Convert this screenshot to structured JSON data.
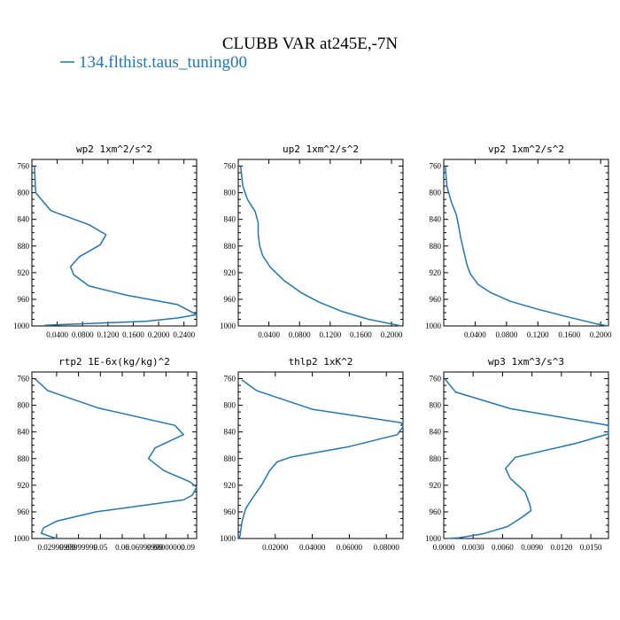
{
  "figure": {
    "title": "CLUBB VAR at245E,-7N",
    "legend_label": "134.flthist.taus_tuning00",
    "colors": {
      "series": "#1f77b4",
      "axes": "#000000",
      "background": "#ffffff"
    }
  },
  "chart_data": [
    {
      "type": "line",
      "title": "wp2   1xm^2/s^2",
      "xlim": [
        0,
        0.26
      ],
      "ylim": [
        1000,
        750
      ],
      "xticks": [
        "0.0400",
        "0.0800",
        "0.1200",
        "0.1600",
        "0.2000",
        "0.2400"
      ],
      "xtick_values": [
        0.04,
        0.08,
        0.12,
        0.16,
        0.2,
        0.24
      ],
      "yticks": [
        760,
        800,
        840,
        880,
        920,
        960,
        1000
      ],
      "series": [
        {
          "name": "134.flthist.taus_tuning00",
          "points": [
            [
              0.004,
              760
            ],
            [
              0.006,
              800
            ],
            [
              0.03,
              827
            ],
            [
              0.09,
              848
            ],
            [
              0.117,
              863
            ],
            [
              0.108,
              878
            ],
            [
              0.075,
              896
            ],
            [
              0.061,
              911
            ],
            [
              0.066,
              923
            ],
            [
              0.09,
              940
            ],
            [
              0.15,
              954
            ],
            [
              0.23,
              968
            ],
            [
              0.26,
              983
            ],
            [
              0.23,
              988
            ],
            [
              0.18,
              993
            ],
            [
              0.1,
              996
            ],
            [
              0.02,
              999
            ]
          ]
        }
      ]
    },
    {
      "type": "line",
      "title": "up2   1xm^2/s^2",
      "xlim": [
        0,
        0.215
      ],
      "ylim": [
        1000,
        750
      ],
      "xticks": [
        "0.0400",
        "0.0800",
        "0.1200",
        "0.1600",
        "0.2000"
      ],
      "xtick_values": [
        0.04,
        0.08,
        0.12,
        0.16,
        0.2
      ],
      "yticks": [
        760,
        800,
        840,
        880,
        920,
        960,
        1000
      ],
      "series": [
        {
          "name": "134.flthist.taus_tuning00",
          "points": [
            [
              0.003,
              760
            ],
            [
              0.006,
              790
            ],
            [
              0.012,
              810
            ],
            [
              0.022,
              828
            ],
            [
              0.026,
              845
            ],
            [
              0.026,
              862
            ],
            [
              0.028,
              880
            ],
            [
              0.032,
              895
            ],
            [
              0.042,
              912
            ],
            [
              0.06,
              932
            ],
            [
              0.082,
              950
            ],
            [
              0.105,
              964
            ],
            [
              0.135,
              978
            ],
            [
              0.17,
              990
            ],
            [
              0.2,
              997
            ],
            [
              0.213,
              1000
            ]
          ]
        }
      ]
    },
    {
      "type": "line",
      "title": "vp2   1xm^2/s^2",
      "xlim": [
        0,
        0.21
      ],
      "ylim": [
        1000,
        750
      ],
      "xticks": [
        "0.0400",
        "0.0800",
        "0.1200",
        "0.1600",
        "0.2000"
      ],
      "xtick_values": [
        0.04,
        0.08,
        0.12,
        0.16,
        0.2
      ],
      "yticks": [
        760,
        800,
        840,
        880,
        920,
        960,
        1000
      ],
      "series": [
        {
          "name": "134.flthist.taus_tuning00",
          "points": [
            [
              0.002,
              760
            ],
            [
              0.004,
              790
            ],
            [
              0.01,
              815
            ],
            [
              0.016,
              833
            ],
            [
              0.019,
              850
            ],
            [
              0.022,
              870
            ],
            [
              0.026,
              890
            ],
            [
              0.03,
              910
            ],
            [
              0.034,
              922
            ],
            [
              0.044,
              938
            ],
            [
              0.06,
              950
            ],
            [
              0.085,
              963
            ],
            [
              0.12,
              975
            ],
            [
              0.16,
              987
            ],
            [
              0.195,
              997
            ],
            [
              0.21,
              1000
            ]
          ]
        }
      ]
    },
    {
      "type": "line",
      "title": "rtp2   1E-6x(kg/kg)^2",
      "xlim": [
        0.0187,
        0.094
      ],
      "ylim": [
        1000,
        750
      ],
      "xticks": [
        "0.02999999",
        "0.03999999",
        "0.05",
        "0.06",
        "0.06999999",
        "0.08000000",
        "0.09"
      ],
      "xtick_values": [
        0.03,
        0.04,
        0.05,
        0.06,
        0.07,
        0.08,
        0.09
      ],
      "yticks": [
        760,
        800,
        840,
        880,
        920,
        960,
        1000
      ],
      "series": [
        {
          "name": "134.flthist.taus_tuning00",
          "points": [
            [
              0.02,
              760
            ],
            [
              0.026,
              778
            ],
            [
              0.049,
              804
            ],
            [
              0.084,
              830
            ],
            [
              0.088,
              844
            ],
            [
              0.075,
              864
            ],
            [
              0.072,
              880
            ],
            [
              0.079,
              898
            ],
            [
              0.091,
              915
            ],
            [
              0.094,
              923
            ],
            [
              0.092,
              935
            ],
            [
              0.088,
              942
            ],
            [
              0.048,
              960
            ],
            [
              0.03,
              974
            ],
            [
              0.024,
              984
            ],
            [
              0.023,
              992
            ],
            [
              0.027,
              997
            ],
            [
              0.03,
              1000
            ]
          ]
        }
      ]
    },
    {
      "type": "line",
      "title": "thlp2   1xK^2",
      "xlim": [
        0,
        0.089
      ],
      "ylim": [
        1000,
        750
      ],
      "xticks": [
        "0.02000",
        "0.04000",
        "0.06000",
        "0.08000"
      ],
      "xtick_values": [
        0.02,
        0.04,
        0.06,
        0.08
      ],
      "yticks": [
        760,
        800,
        840,
        880,
        920,
        960,
        1000
      ],
      "series": [
        {
          "name": "134.flthist.taus_tuning00",
          "points": [
            [
              0.002,
              762
            ],
            [
              0.01,
              778
            ],
            [
              0.04,
              806
            ],
            [
              0.088,
              826
            ],
            [
              0.089,
              832
            ],
            [
              0.086,
              844
            ],
            [
              0.06,
              862
            ],
            [
              0.028,
              878
            ],
            [
              0.021,
              885
            ],
            [
              0.017,
              898
            ],
            [
              0.013,
              918
            ],
            [
              0.008,
              938
            ],
            [
              0.004,
              955
            ],
            [
              0.002,
              975
            ],
            [
              0.001,
              995
            ],
            [
              0.0005,
              1000
            ]
          ]
        }
      ]
    },
    {
      "type": "line",
      "title": "wp3   1xm^3/s^3",
      "xlim": [
        0,
        0.0168
      ],
      "ylim": [
        1000,
        750
      ],
      "xticks": [
        "0.0000",
        "0.0030",
        "0.0060",
        "0.0090",
        "0.0120",
        "0.0150"
      ],
      "xtick_values": [
        0,
        0.003,
        0.006,
        0.009,
        0.012,
        0.015
      ],
      "yticks": [
        760,
        800,
        840,
        880,
        920,
        960,
        1000
      ],
      "series": [
        {
          "name": "134.flthist.taus_tuning00",
          "points": [
            [
              0.0001,
              760
            ],
            [
              0.0012,
              780
            ],
            [
              0.0068,
              805
            ],
            [
              0.0168,
              830
            ],
            [
              0.0168,
              843
            ],
            [
              0.0135,
              857
            ],
            [
              0.0073,
              878
            ],
            [
              0.0063,
              895
            ],
            [
              0.0068,
              910
            ],
            [
              0.0083,
              930
            ],
            [
              0.0088,
              950
            ],
            [
              0.0089,
              958
            ],
            [
              0.008,
              968
            ],
            [
              0.0065,
              982
            ],
            [
              0.004,
              993
            ],
            [
              0.0015,
              999
            ],
            [
              0.0002,
              1000
            ]
          ]
        }
      ]
    }
  ]
}
